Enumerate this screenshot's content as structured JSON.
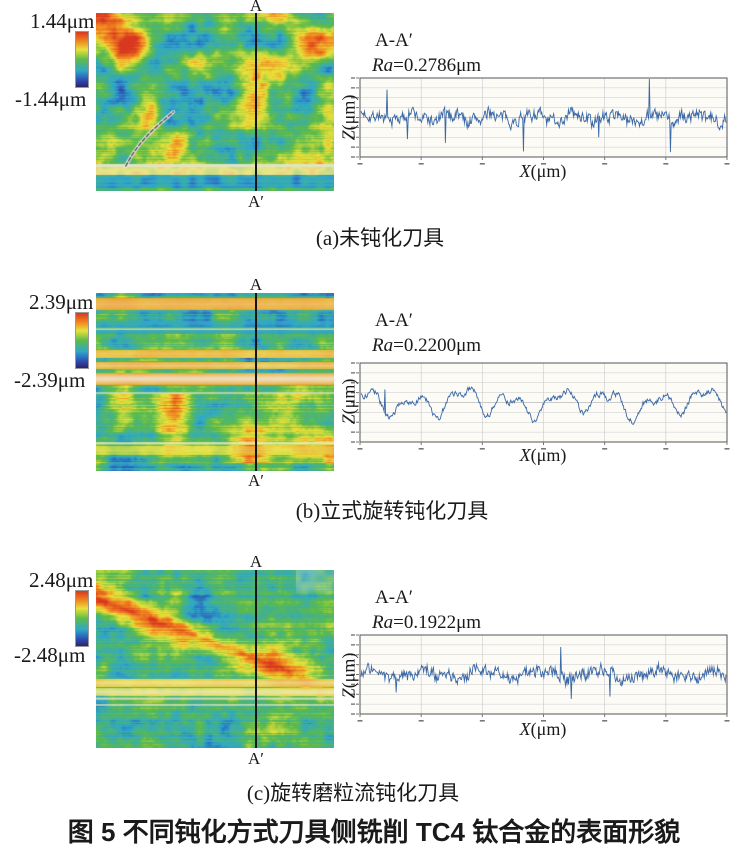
{
  "figure_title": "图 5  不同钝化方式刀具侧铣削 TC4 钛合金的表面形貌",
  "colors": {
    "jet_stops": [
      [
        0,
        "#2e2366"
      ],
      [
        0.12,
        "#2c4bb3"
      ],
      [
        0.3,
        "#2fa8c9"
      ],
      [
        0.5,
        "#5cbb4a"
      ],
      [
        0.68,
        "#e8e23a"
      ],
      [
        0.84,
        "#f0821f"
      ],
      [
        1,
        "#d8381f"
      ]
    ],
    "profile_line": "#3a68a8",
    "frame": "#55555a",
    "grid": "#cacace",
    "plot_bg": "#fcfbf5",
    "section_line": "#151515"
  },
  "panels": [
    {
      "id": "a",
      "scale_max": "1.44μm",
      "scale_min": "-1.44μm",
      "section_top": "A",
      "section_bottom": "A′",
      "profile_title": "A-A′",
      "ra_label": "Ra",
      "ra_value": "=0.2786μm",
      "xlabel_var": "X",
      "xlabel_unit": "(μm)",
      "ylabel_var": "Z",
      "ylabel_unit": "(μm)",
      "caption": "(a)未钝化刀具"
    },
    {
      "id": "b",
      "scale_max": "2.39μm",
      "scale_min": "-2.39μm",
      "section_top": "A",
      "section_bottom": "A′",
      "profile_title": "A-A′",
      "ra_label": "Ra",
      "ra_value": "=0.2200μm",
      "xlabel_var": "X",
      "xlabel_unit": "(μm)",
      "ylabel_var": "Z",
      "ylabel_unit": "(μm)",
      "caption": "(b)立式旋转钝化刀具"
    },
    {
      "id": "c",
      "scale_max": "2.48μm",
      "scale_min": "-2.48μm",
      "section_top": "A",
      "section_bottom": "A′",
      "profile_title": "A-A′",
      "ra_label": "Ra",
      "ra_value": "=0.1922μm",
      "xlabel_var": "X",
      "xlabel_unit": "(μm)",
      "ylabel_var": "Z",
      "ylabel_unit": "(μm)",
      "caption": "(c)旋转磨粒流钝化刀具"
    }
  ],
  "chart_data": [
    {
      "panel": "a",
      "caption": "(a)未钝化刀具",
      "surface_map": {
        "type": "heatmap",
        "colormap": "rainbow (red = high, dark blue = low)",
        "scale_max_um": 1.44,
        "scale_min_um": -1.44,
        "section_line": "vertical A–A′ line at ≈67% of map width",
        "appearance": "mottled yellow-green/cyan texture with orange patches in upper half, dark scratch mark in lower-left, pale horizontal band plus blue band near bottom"
      },
      "profile": {
        "type": "line",
        "title": "A-A′",
        "Ra_um": 0.2786,
        "xlabel": "X(μm)",
        "ylabel": "Z(μm)",
        "y_range_um_approx": [
          -1.44,
          1.44
        ],
        "x_grid_intervals": 6,
        "y_grid_intervals": 8,
        "note": "high-frequency jagged roughness trace with sparse tall spikes; axis tick numerals too small to be legible"
      }
    },
    {
      "panel": "b",
      "caption": "(b)立式旋转钝化刀具",
      "surface_map": {
        "type": "heatmap",
        "colormap": "rainbow (red = high, dark blue = low)",
        "scale_max_um": 2.39,
        "scale_min_um": -2.39,
        "section_line": "vertical A–A′ line at ≈67% of map width",
        "appearance": "strong horizontal feed stripes: orange/white bands over cyan background, darker indigo band near top, yellow-green mottling in lower half"
      },
      "profile": {
        "type": "line",
        "title": "A-A′",
        "Ra_um": 0.22,
        "xlabel": "X(μm)",
        "ylabel": "Z(μm)",
        "y_range_um_approx": [
          -2.39,
          2.39
        ],
        "x_grid_intervals": 6,
        "y_grid_intervals": 8,
        "note": "smoother periodic undulating trace"
      }
    },
    {
      "panel": "c",
      "caption": "(c)旋转磨粒流钝化刀具",
      "surface_map": {
        "type": "heatmap",
        "colormap": "rainbow (red = high, dark blue = low)",
        "scale_max_um": 2.48,
        "scale_min_um": -2.48,
        "section_line": "vertical A–A′ line at ≈67% of map width",
        "appearance": "diagonal yellow-orange ridge running from upper-left to mid-right over cyan background, pale horizontal stripe cluster at ≈2/3 height, gray patch top-right"
      },
      "profile": {
        "type": "line",
        "title": "A-A′",
        "Ra_um": 0.1922,
        "xlabel": "X(μm)",
        "ylabel": "Z(μm)",
        "y_range_um_approx": [
          -2.48,
          2.48
        ],
        "x_grid_intervals": 6,
        "y_grid_intervals": 8,
        "note": "dense jagged trace, finest roughness of the three panels"
      }
    }
  ]
}
